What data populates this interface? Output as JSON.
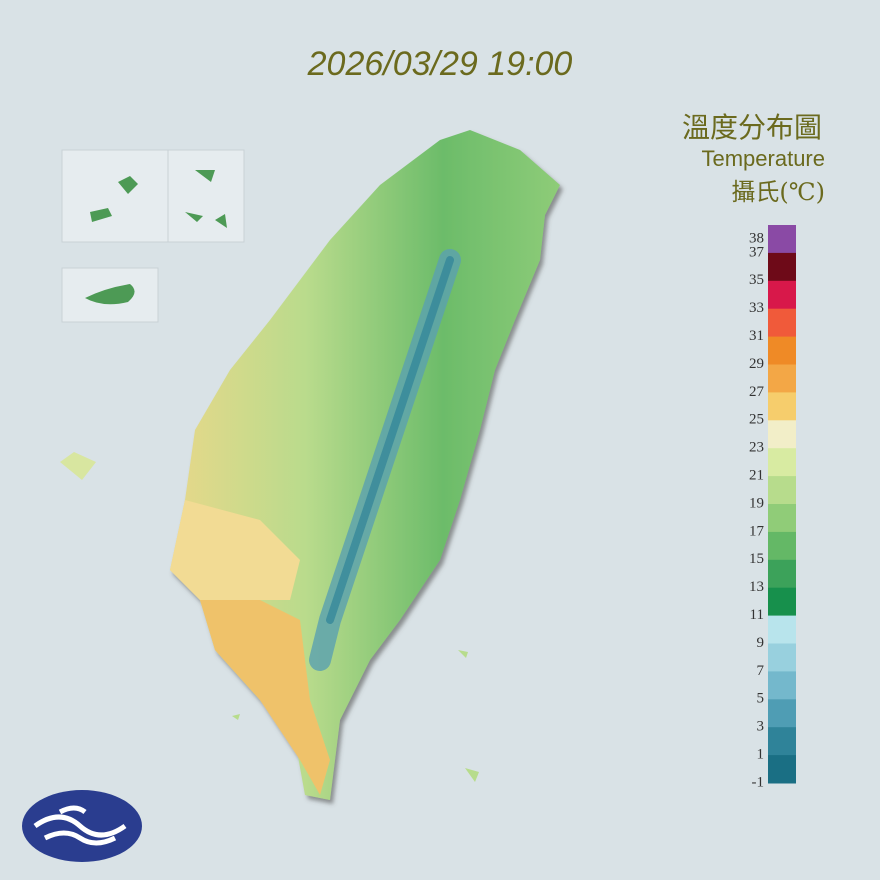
{
  "header": {
    "timestamp": "2026/03/29 19:00"
  },
  "legend": {
    "title": "溫度分布圖",
    "subtitle": "Temperature",
    "unit": "攝氏(℃)",
    "range": [
      -1,
      39
    ],
    "ticks": [
      38,
      37,
      35,
      33,
      31,
      29,
      27,
      25,
      23,
      21,
      19,
      17,
      15,
      13,
      11,
      9,
      7,
      5,
      3,
      1,
      -1
    ],
    "colors": [
      "#8a4aa5",
      "#6e0a18",
      "#d8184a",
      "#f05a3a",
      "#ef8a26",
      "#f3a746",
      "#f6cd6c",
      "#f2eec8",
      "#d8eba2",
      "#b7dc8c",
      "#90cc78",
      "#64b866",
      "#3ca25a",
      "#17904c",
      "#b8e4ec",
      "#98d0de",
      "#74b8cc",
      "#4f9db4",
      "#2f8399",
      "#1a6f84"
    ]
  }
}
